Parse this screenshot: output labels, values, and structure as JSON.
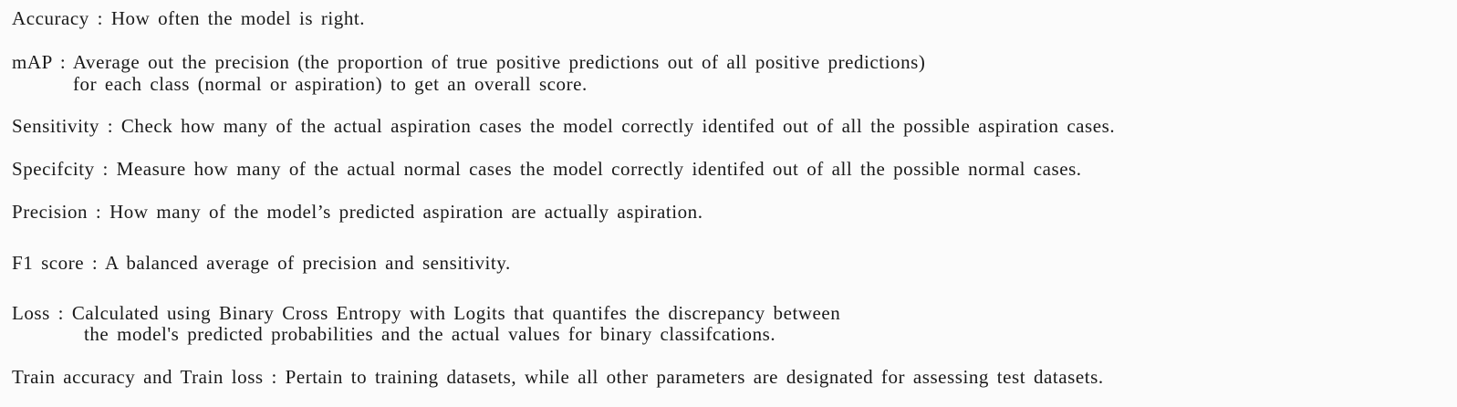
{
  "definitions": [
    {
      "lines": [
        "Accuracy : How often the model is right."
      ]
    },
    {
      "lines": [
        "mAP : Average out the precision (the proportion of true positive predictions out of all positive predictions)",
        "for each class (normal or aspiration) to get an overall score."
      ]
    },
    {
      "lines": [
        "Sensitivity : Check how many of the actual aspiration cases the model correctly identifed out of all the possible aspiration cases."
      ]
    },
    {
      "lines": [
        "Specifcity : Measure how many of the actual normal cases the model correctly identifed out of all the possible normal cases."
      ]
    },
    {
      "lines": [
        "Precision : How many of the model’s predicted aspiration are actually aspiration."
      ]
    },
    {
      "lines": [
        "F1 score : A balanced average of precision and sensitivity."
      ]
    },
    {
      "lines": [
        "Loss : Calculated using Binary Cross Entropy with Logits that quantifes the discrepancy between",
        "the model's predicted probabilities and the actual values for binary classifcations."
      ]
    },
    {
      "lines": [
        "Train accuracy and Train loss : Pertain to training datasets, while all other parameters are designated for assessing test datasets."
      ]
    }
  ]
}
